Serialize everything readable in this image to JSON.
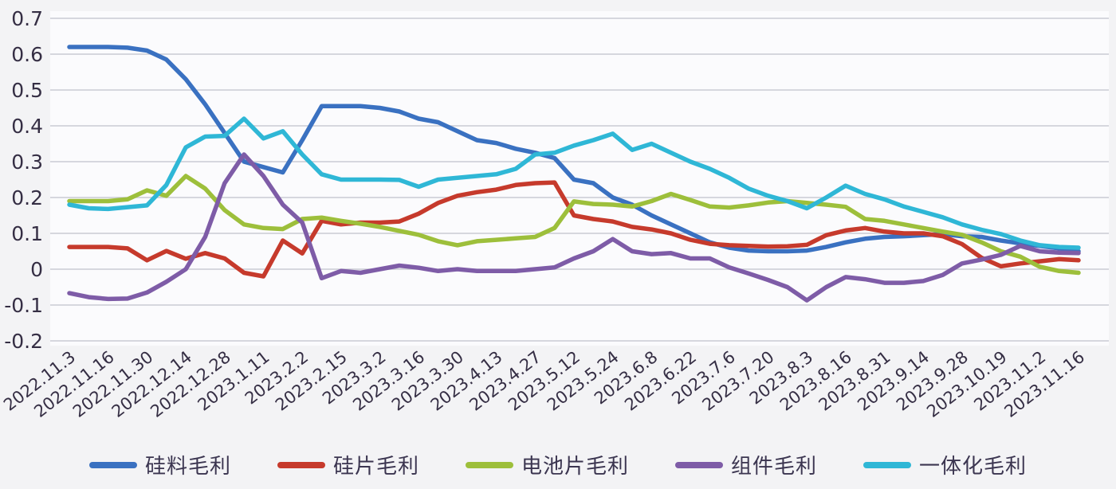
{
  "page": {
    "background": "#f3f3f5",
    "plot_background": "#fbfbfd",
    "grid_color": "#c9cbd3",
    "axis_text_color": "#352e44"
  },
  "chart_data": {
    "type": "line",
    "title": "",
    "xlabel": "",
    "ylabel": "",
    "ylim": [
      -0.2,
      0.7
    ],
    "ytick_step": 0.1,
    "grid": true,
    "legend_position": "bottom",
    "points_per_label": 2,
    "y_labels": [
      "0.7",
      "0.6",
      "0.5",
      "0.4",
      "0.3",
      "0.2",
      "0.1",
      "0",
      "-0.1",
      "-0.2"
    ],
    "x_labels": [
      "2022.11.3",
      "2022.11.16",
      "2022.11.30",
      "2022.12.14",
      "2022.12.28",
      "2023.1.11",
      "2023.2.2",
      "2023.2.15",
      "2023.3.2",
      "2023.3.16",
      "2023.3.30",
      "2023.4.13",
      "2023.4.27",
      "2023.5.12",
      "2023.5.24",
      "2023.6.8",
      "2023.6.22",
      "2023.7.6",
      "2023.7.20",
      "2023.8.3",
      "2023.8.16",
      "2023.8.31",
      "2023.9.14",
      "2023.9.28",
      "2023.10.19",
      "2023.11.2",
      "2023.11.16"
    ],
    "series": [
      {
        "key": "silicon-margin",
        "name": "硅料毛利",
        "color": "#3a71c1",
        "values": [
          0.62,
          0.62,
          0.62,
          0.618,
          0.61,
          0.585,
          0.53,
          0.46,
          0.38,
          0.3,
          0.285,
          0.27,
          0.36,
          0.455,
          0.455,
          0.455,
          0.45,
          0.44,
          0.42,
          0.41,
          0.385,
          0.36,
          0.352,
          0.336,
          0.325,
          0.31,
          0.25,
          0.24,
          0.2,
          0.18,
          0.15,
          0.125,
          0.1,
          0.075,
          0.06,
          0.052,
          0.05,
          0.05,
          0.052,
          0.062,
          0.075,
          0.085,
          0.09,
          0.092,
          0.095,
          0.098,
          0.092,
          0.09,
          0.08,
          0.072,
          0.065,
          0.058,
          0.05
        ]
      },
      {
        "key": "wafer-margin",
        "name": "硅片毛利",
        "color": "#c63a2c",
        "values": [
          0.062,
          0.062,
          0.062,
          0.058,
          0.025,
          0.051,
          0.029,
          0.045,
          0.03,
          -0.01,
          -0.02,
          0.08,
          0.044,
          0.135,
          0.125,
          0.13,
          0.13,
          0.133,
          0.155,
          0.185,
          0.205,
          0.215,
          0.222,
          0.235,
          0.24,
          0.242,
          0.15,
          0.14,
          0.133,
          0.118,
          0.111,
          0.1,
          0.082,
          0.071,
          0.067,
          0.065,
          0.063,
          0.064,
          0.068,
          0.095,
          0.108,
          0.115,
          0.105,
          0.1,
          0.1,
          0.092,
          0.07,
          0.032,
          0.008,
          0.016,
          0.022,
          0.028,
          0.025
        ]
      },
      {
        "key": "cell-margin",
        "name": "电池片毛利",
        "color": "#9dbf3b",
        "values": [
          0.19,
          0.19,
          0.19,
          0.195,
          0.22,
          0.205,
          0.26,
          0.225,
          0.165,
          0.125,
          0.115,
          0.112,
          0.14,
          0.144,
          0.135,
          0.127,
          0.118,
          0.107,
          0.096,
          0.078,
          0.067,
          0.078,
          0.082,
          0.086,
          0.09,
          0.115,
          0.189,
          0.182,
          0.18,
          0.175,
          0.19,
          0.21,
          0.193,
          0.175,
          0.172,
          0.178,
          0.186,
          0.19,
          0.185,
          0.18,
          0.174,
          0.14,
          0.135,
          0.125,
          0.115,
          0.105,
          0.096,
          0.075,
          0.05,
          0.035,
          0.007,
          -0.005,
          -0.01
        ]
      },
      {
        "key": "module-margin",
        "name": "组件毛利",
        "color": "#7e5ca7",
        "values": [
          -0.067,
          -0.078,
          -0.083,
          -0.082,
          -0.065,
          -0.035,
          0.0,
          0.09,
          0.24,
          0.32,
          0.26,
          0.18,
          0.13,
          -0.025,
          -0.005,
          -0.01,
          0.0,
          0.01,
          0.004,
          -0.005,
          0.0,
          -0.005,
          -0.005,
          -0.005,
          0.0,
          0.005,
          0.03,
          0.05,
          0.084,
          0.05,
          0.042,
          0.045,
          0.03,
          0.03,
          0.005,
          -0.012,
          -0.03,
          -0.05,
          -0.087,
          -0.05,
          -0.022,
          -0.028,
          -0.038,
          -0.038,
          -0.033,
          -0.016,
          0.016,
          0.027,
          0.04,
          0.065,
          0.05,
          0.046,
          0.045
        ]
      },
      {
        "key": "integrated-margin",
        "name": "一体化毛利",
        "color": "#2fb7d6",
        "values": [
          0.18,
          0.17,
          0.168,
          0.173,
          0.178,
          0.235,
          0.34,
          0.37,
          0.372,
          0.42,
          0.365,
          0.385,
          0.32,
          0.265,
          0.25,
          0.25,
          0.25,
          0.249,
          0.23,
          0.25,
          0.255,
          0.26,
          0.265,
          0.28,
          0.32,
          0.325,
          0.345,
          0.36,
          0.378,
          0.333,
          0.35,
          0.325,
          0.3,
          0.28,
          0.255,
          0.225,
          0.205,
          0.19,
          0.17,
          0.2,
          0.233,
          0.21,
          0.195,
          0.175,
          0.16,
          0.145,
          0.125,
          0.11,
          0.098,
          0.08,
          0.067,
          0.062,
          0.06
        ]
      }
    ]
  }
}
